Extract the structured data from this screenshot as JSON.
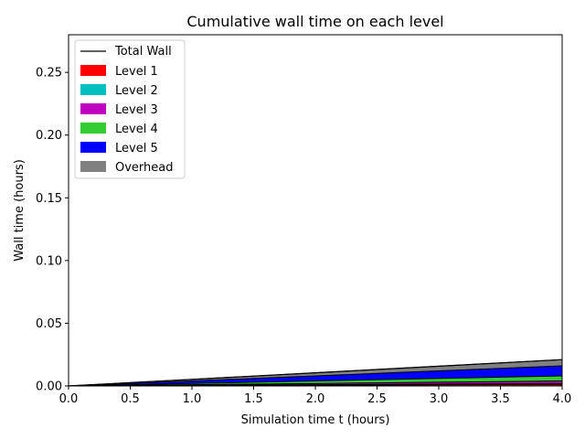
{
  "chart_data": {
    "type": "area",
    "title": "Cumulative wall time on each level",
    "xlabel": "Simulation time t (hours)",
    "ylabel": "Wall time (hours)",
    "xlim": [
      0.0,
      4.0
    ],
    "ylim": [
      0.0,
      0.28
    ],
    "x_ticks": [
      "0.0",
      "0.5",
      "1.0",
      "1.5",
      "2.0",
      "2.5",
      "3.0",
      "3.5",
      "4.0"
    ],
    "y_ticks": [
      "0.00",
      "0.05",
      "0.10",
      "0.15",
      "0.20",
      "0.25"
    ],
    "x": [
      0.0,
      0.5,
      1.0,
      1.5,
      2.0,
      2.5,
      3.0,
      3.5,
      4.0
    ],
    "stacked": true,
    "series": [
      {
        "name": "Level 1",
        "color": "#ff0000",
        "values": [
          0,
          0.00015,
          0.0003,
          0.00045,
          0.0006,
          0.00075,
          0.0009,
          0.00105,
          0.0012
        ]
      },
      {
        "name": "Level 2",
        "color": "#00bfbf",
        "values": [
          0,
          0.0001,
          0.0002,
          0.0003,
          0.0004,
          0.0005,
          0.0006,
          0.0007,
          0.0008
        ]
      },
      {
        "name": "Level 3",
        "color": "#bf00bf",
        "values": [
          0,
          0.00025,
          0.0005,
          0.00075,
          0.001,
          0.00125,
          0.0015,
          0.00175,
          0.002
        ]
      },
      {
        "name": "Level 4",
        "color": "#32cd32",
        "values": [
          0,
          0.0005,
          0.001,
          0.0015,
          0.002,
          0.0025,
          0.003,
          0.0035,
          0.004
        ]
      },
      {
        "name": "Level 5",
        "color": "#0000ff",
        "values": [
          0,
          0.001,
          0.002,
          0.003,
          0.004,
          0.005,
          0.006,
          0.007,
          0.008
        ]
      },
      {
        "name": "Overhead",
        "color": "#808080",
        "values": [
          0,
          0.000625,
          0.00125,
          0.001875,
          0.0025,
          0.003125,
          0.00375,
          0.004375,
          0.005
        ]
      }
    ],
    "total": {
      "name": "Total Wall",
      "color": "#000000",
      "values": [
        0,
        0.002625,
        0.00525,
        0.007875,
        0.0105,
        0.013125,
        0.01575,
        0.018375,
        0.021
      ]
    },
    "legend_position": "top-left",
    "grid": false
  }
}
